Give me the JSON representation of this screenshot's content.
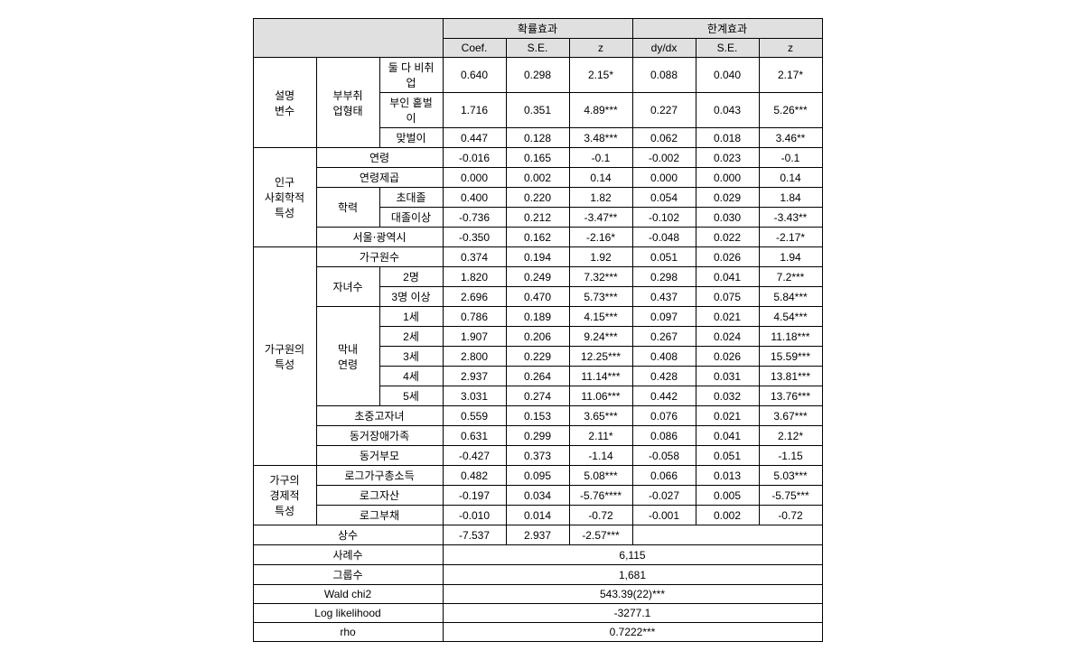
{
  "headers": {
    "group1": "확률효과",
    "group2": "한계효과",
    "coef": "Coef.",
    "se": "S.E.",
    "z": "z",
    "dydx": "dy/dx",
    "se2": "S.E.",
    "z2": "z"
  },
  "sections": {
    "explain": {
      "label": "설명\n변수",
      "sub": "부부취\n업형태",
      "rows": [
        {
          "name": "둘 다 비취업",
          "c": "0.640",
          "s": "0.298",
          "z": "2.15*",
          "d": "0.088",
          "s2": "0.040",
          "z2": "2.17*"
        },
        {
          "name": "부인 홑벌이",
          "c": "1.716",
          "s": "0.351",
          "z": "4.89***",
          "d": "0.227",
          "s2": "0.043",
          "z2": "5.26***"
        },
        {
          "name": "맞벌이",
          "c": "0.447",
          "s": "0.128",
          "z": "3.48***",
          "d": "0.062",
          "s2": "0.018",
          "z2": "3.46**"
        }
      ]
    },
    "demo": {
      "label": "인구\n사회학적\n특성",
      "age": {
        "name": "연령",
        "c": "-0.016",
        "s": "0.165",
        "z": "-0.1",
        "d": "-0.002",
        "s2": "0.023",
        "z2": "-0.1"
      },
      "agesq": {
        "name": "연령제곱",
        "c": "0.000",
        "s": "0.002",
        "z": "0.14",
        "d": "0.000",
        "s2": "0.000",
        "z2": "0.14"
      },
      "edu": {
        "label": "학력",
        "rows": [
          {
            "name": "초대졸",
            "c": "0.400",
            "s": "0.220",
            "z": "1.82",
            "d": "0.054",
            "s2": "0.029",
            "z2": "1.84"
          },
          {
            "name": "대졸이상",
            "c": "-0.736",
            "s": "0.212",
            "z": "-3.47**",
            "d": "-0.102",
            "s2": "0.030",
            "z2": "-3.43**"
          }
        ]
      },
      "seoul": {
        "name": "서울⋅광역시",
        "c": "-0.350",
        "s": "0.162",
        "z": "-2.16*",
        "d": "-0.048",
        "s2": "0.022",
        "z2": "-2.17*"
      }
    },
    "household": {
      "label": "가구원의\n특성",
      "size": {
        "name": "가구원수",
        "c": "0.374",
        "s": "0.194",
        "z": "1.92",
        "d": "0.051",
        "s2": "0.026",
        "z2": "1.94"
      },
      "children": {
        "label": "자녀수",
        "rows": [
          {
            "name": "2명",
            "c": "1.820",
            "s": "0.249",
            "z": "7.32***",
            "d": "0.298",
            "s2": "0.041",
            "z2": "7.2***"
          },
          {
            "name": "3명 이상",
            "c": "2.696",
            "s": "0.470",
            "z": "5.73***",
            "d": "0.437",
            "s2": "0.075",
            "z2": "5.84***"
          }
        ]
      },
      "youngest": {
        "label": "막내\n연령",
        "rows": [
          {
            "name": "1세",
            "c": "0.786",
            "s": "0.189",
            "z": "4.15***",
            "d": "0.097",
            "s2": "0.021",
            "z2": "4.54***"
          },
          {
            "name": "2세",
            "c": "1.907",
            "s": "0.206",
            "z": "9.24***",
            "d": "0.267",
            "s2": "0.024",
            "z2": "11.18***"
          },
          {
            "name": "3세",
            "c": "2.800",
            "s": "0.229",
            "z": "12.25***",
            "d": "0.408",
            "s2": "0.026",
            "z2": "15.59***"
          },
          {
            "name": "4세",
            "c": "2.937",
            "s": "0.264",
            "z": "11.14***",
            "d": "0.428",
            "s2": "0.031",
            "z2": "13.81***"
          },
          {
            "name": "5세",
            "c": "3.031",
            "s": "0.274",
            "z": "11.06***",
            "d": "0.442",
            "s2": "0.032",
            "z2": "13.76***"
          }
        ]
      },
      "schoolkid": {
        "name": "초중고자녀",
        "c": "0.559",
        "s": "0.153",
        "z": "3.65***",
        "d": "0.076",
        "s2": "0.021",
        "z2": "3.67***"
      },
      "disabled": {
        "name": "동거장애가족",
        "c": "0.631",
        "s": "0.299",
        "z": "2.11*",
        "d": "0.086",
        "s2": "0.041",
        "z2": "2.12*"
      },
      "parents": {
        "name": "동거부모",
        "c": "-0.427",
        "s": "0.373",
        "z": "-1.14",
        "d": "-0.058",
        "s2": "0.051",
        "z2": "-1.15"
      }
    },
    "econ": {
      "label": "가구의\n경제적\n특성",
      "rows": [
        {
          "name": "로그가구총소득",
          "c": "0.482",
          "s": "0.095",
          "z": "5.08***",
          "d": "0.066",
          "s2": "0.013",
          "z2": "5.03***"
        },
        {
          "name": "로그자산",
          "c": "-0.197",
          "s": "0.034",
          "z": "-5.76****",
          "d": "-0.027",
          "s2": "0.005",
          "z2": "-5.75***"
        },
        {
          "name": "로그부채",
          "c": "-0.010",
          "s": "0.014",
          "z": "-0.72",
          "d": "-0.001",
          "s2": "0.002",
          "z2": "-0.72"
        }
      ]
    },
    "constant": {
      "name": "상수",
      "c": "-7.537",
      "s": "2.937",
      "z": "-2.57***"
    }
  },
  "stats": {
    "cases": {
      "label": "사례수",
      "value": "6,115"
    },
    "groups": {
      "label": "그룹수",
      "value": "1,681"
    },
    "wald": {
      "label": "Wald chi2",
      "value": "543.39(22)***"
    },
    "loglik": {
      "label": "Log likelihood",
      "value": "-3277.1"
    },
    "rho": {
      "label": "rho",
      "value": "0.7222***"
    }
  }
}
